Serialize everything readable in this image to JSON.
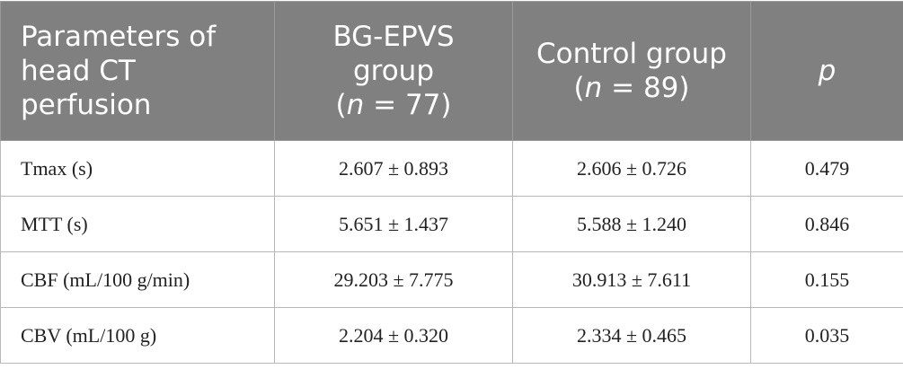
{
  "table": {
    "header": {
      "parameter": "Parameters of head CT perfusion",
      "group1": {
        "name": "BG-EPVS group",
        "sample": [
          "(",
          "n",
          " = 77)"
        ]
      },
      "group2": {
        "name": "Control group",
        "sample": [
          "(",
          "n",
          " = 89)"
        ]
      },
      "p": "p"
    },
    "rows": [
      [
        "Tmax (s)",
        "2.607 ± 0.893",
        "2.606 ± 0.726",
        "0.479"
      ],
      [
        "MTT (s)",
        "5.651 ± 1.437",
        "5.588 ± 1.240",
        "0.846"
      ],
      [
        "CBF (mL/100 g/min)",
        "29.203 ± 7.775",
        "30.913 ± 7.611",
        "0.155"
      ],
      [
        "CBV (mL/100 g)",
        "2.204 ± 0.320",
        "2.334 ± 0.465",
        "0.035"
      ]
    ]
  }
}
